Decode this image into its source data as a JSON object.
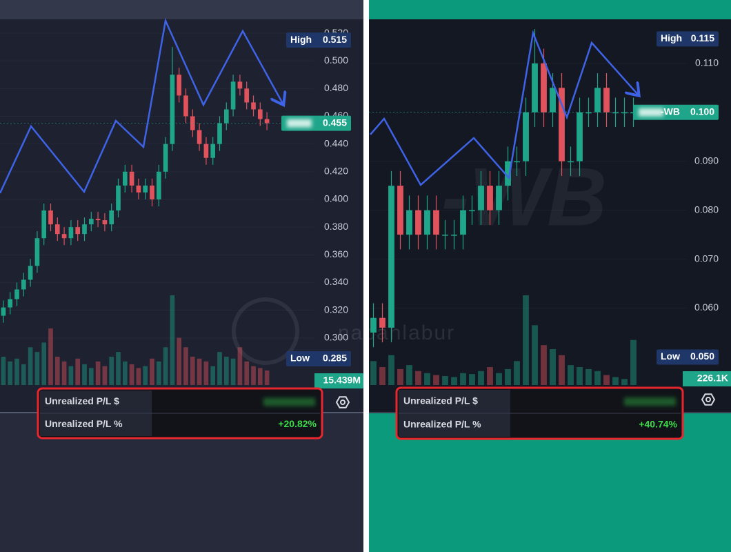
{
  "chart_data": [
    {
      "type": "candlestick",
      "open": [
        0.316,
        0.322,
        0.328,
        0.335,
        0.342,
        0.352,
        0.372,
        0.392,
        0.382,
        0.375,
        0.372,
        0.38,
        0.375,
        0.382,
        0.386,
        0.385,
        0.382,
        0.392,
        0.41,
        0.42,
        0.41,
        0.405,
        0.41,
        0.4,
        0.42,
        0.44,
        0.49,
        0.475,
        0.46,
        0.45,
        0.44,
        0.43,
        0.44,
        0.455,
        0.465,
        0.485,
        0.48,
        0.47,
        0.465,
        0.458
      ],
      "high": [
        0.327,
        0.333,
        0.34,
        0.347,
        0.357,
        0.377,
        0.397,
        0.397,
        0.387,
        0.38,
        0.385,
        0.385,
        0.387,
        0.391,
        0.391,
        0.39,
        0.397,
        0.415,
        0.425,
        0.425,
        0.415,
        0.415,
        0.415,
        0.425,
        0.445,
        0.51,
        0.495,
        0.48,
        0.465,
        0.455,
        0.445,
        0.445,
        0.46,
        0.47,
        0.49,
        0.49,
        0.485,
        0.475,
        0.47,
        0.463
      ],
      "low": [
        0.311,
        0.317,
        0.323,
        0.33,
        0.337,
        0.347,
        0.367,
        0.377,
        0.37,
        0.367,
        0.367,
        0.37,
        0.37,
        0.377,
        0.38,
        0.377,
        0.377,
        0.387,
        0.405,
        0.405,
        0.4,
        0.4,
        0.395,
        0.395,
        0.415,
        0.435,
        0.47,
        0.455,
        0.445,
        0.435,
        0.425,
        0.425,
        0.435,
        0.45,
        0.46,
        0.475,
        0.465,
        0.46,
        0.453,
        0.45
      ],
      "close": [
        0.322,
        0.328,
        0.335,
        0.342,
        0.352,
        0.372,
        0.392,
        0.382,
        0.375,
        0.372,
        0.38,
        0.375,
        0.382,
        0.386,
        0.385,
        0.382,
        0.392,
        0.41,
        0.42,
        0.41,
        0.405,
        0.41,
        0.4,
        0.42,
        0.44,
        0.49,
        0.475,
        0.46,
        0.45,
        0.44,
        0.43,
        0.44,
        0.455,
        0.465,
        0.485,
        0.48,
        0.47,
        0.465,
        0.458,
        0.455
      ],
      "volume": [
        30,
        25,
        28,
        22,
        40,
        35,
        45,
        60,
        30,
        25,
        20,
        28,
        22,
        18,
        25,
        20,
        30,
        35,
        25,
        22,
        18,
        20,
        28,
        25,
        40,
        95,
        50,
        40,
        30,
        28,
        25,
        20,
        35,
        30,
        28,
        40,
        25,
        20,
        18,
        15.439
      ],
      "up_color": "#1fa58a",
      "down_color": "#e0525c",
      "ylim": [
        0.265,
        0.53
      ],
      "yticks": [
        {
          "value": 0.3,
          "label": "0.300"
        },
        {
          "value": 0.32,
          "label": "0.320"
        },
        {
          "value": 0.34,
          "label": "0.340"
        },
        {
          "value": 0.36,
          "label": "0.360"
        },
        {
          "value": 0.38,
          "label": "0.380"
        },
        {
          "value": 0.4,
          "label": "0.400"
        },
        {
          "value": 0.42,
          "label": "0.420"
        },
        {
          "value": 0.44,
          "label": "0.440"
        },
        {
          "value": 0.46,
          "label": "0.460"
        },
        {
          "value": 0.48,
          "label": "0.480"
        },
        {
          "value": 0.5,
          "label": "0.500"
        },
        {
          "value": 0.52,
          "label": "0.520"
        }
      ],
      "grid": true,
      "high_label": "High",
      "high_value": {
        "value": 0.515,
        "label": "0.515"
      },
      "low_label": "Low",
      "low_value": {
        "value": 0.285,
        "label": "0.285"
      },
      "last_value": {
        "value": 0.455,
        "label": "0.455"
      },
      "volume_label": "15.439M",
      "pl_dollar_label": "Unrealized P/L $",
      "pl_percent_label": "Unrealized P/L %",
      "pl_percent": "+20.82%"
    },
    {
      "type": "candlestick",
      "open": [
        0.055,
        0.058,
        0.056,
        0.085,
        0.075,
        0.08,
        0.075,
        0.08,
        0.075,
        0.075,
        0.075,
        0.08,
        0.08,
        0.085,
        0.08,
        0.085,
        0.09,
        0.09,
        0.1,
        0.11,
        0.1,
        0.105,
        0.09,
        0.09,
        0.1,
        0.1,
        0.105,
        0.1,
        0.1,
        0.1
      ],
      "high": [
        0.061,
        0.061,
        0.088,
        0.088,
        0.083,
        0.083,
        0.083,
        0.083,
        0.078,
        0.078,
        0.083,
        0.083,
        0.088,
        0.088,
        0.088,
        0.093,
        0.093,
        0.103,
        0.117,
        0.113,
        0.108,
        0.108,
        0.093,
        0.103,
        0.103,
        0.108,
        0.108,
        0.103,
        0.103,
        0.103
      ],
      "low": [
        0.052,
        0.053,
        0.053,
        0.072,
        0.072,
        0.072,
        0.072,
        0.072,
        0.072,
        0.072,
        0.072,
        0.077,
        0.077,
        0.077,
        0.077,
        0.082,
        0.087,
        0.087,
        0.097,
        0.097,
        0.097,
        0.087,
        0.087,
        0.087,
        0.097,
        0.097,
        0.097,
        0.097,
        0.097,
        0.097
      ],
      "close": [
        0.058,
        0.056,
        0.085,
        0.075,
        0.08,
        0.075,
        0.08,
        0.075,
        0.075,
        0.075,
        0.08,
        0.08,
        0.085,
        0.08,
        0.085,
        0.09,
        0.09,
        0.1,
        0.11,
        0.1,
        0.105,
        0.09,
        0.09,
        0.1,
        0.1,
        0.105,
        0.1,
        0.1,
        0.1,
        0.1
      ],
      "volume": [
        120,
        90,
        150,
        80,
        100,
        70,
        60,
        50,
        45,
        40,
        60,
        55,
        70,
        90,
        60,
        80,
        120,
        450,
        300,
        200,
        180,
        150,
        100,
        90,
        80,
        70,
        50,
        40,
        30,
        226.1
      ],
      "up_color": "#1fa58a",
      "down_color": "#e0525c",
      "ylim": [
        0.044,
        0.119
      ],
      "yticks": [
        {
          "value": 0.06,
          "label": "0.060"
        },
        {
          "value": 0.07,
          "label": "0.070"
        },
        {
          "value": 0.08,
          "label": "0.080"
        },
        {
          "value": 0.09,
          "label": "0.090"
        },
        {
          "value": 0.1,
          "label": "0.100"
        },
        {
          "value": 0.11,
          "label": "0.110"
        }
      ],
      "grid": true,
      "high_label": "High",
      "high_value": {
        "value": 0.115,
        "label": "0.115"
      },
      "low_label": "Low",
      "low_value": {
        "value": 0.05,
        "label": "0.050"
      },
      "last_value": {
        "value": 0.1,
        "label": "0.100"
      },
      "symbol": "-WB",
      "volume_label": "226.1K",
      "pl_dollar_label": "Unrealized P/L $",
      "pl_percent_label": "Unrealized P/L %",
      "pl_percent": "+40.74%"
    }
  ],
  "watermark": "nabahlabur"
}
